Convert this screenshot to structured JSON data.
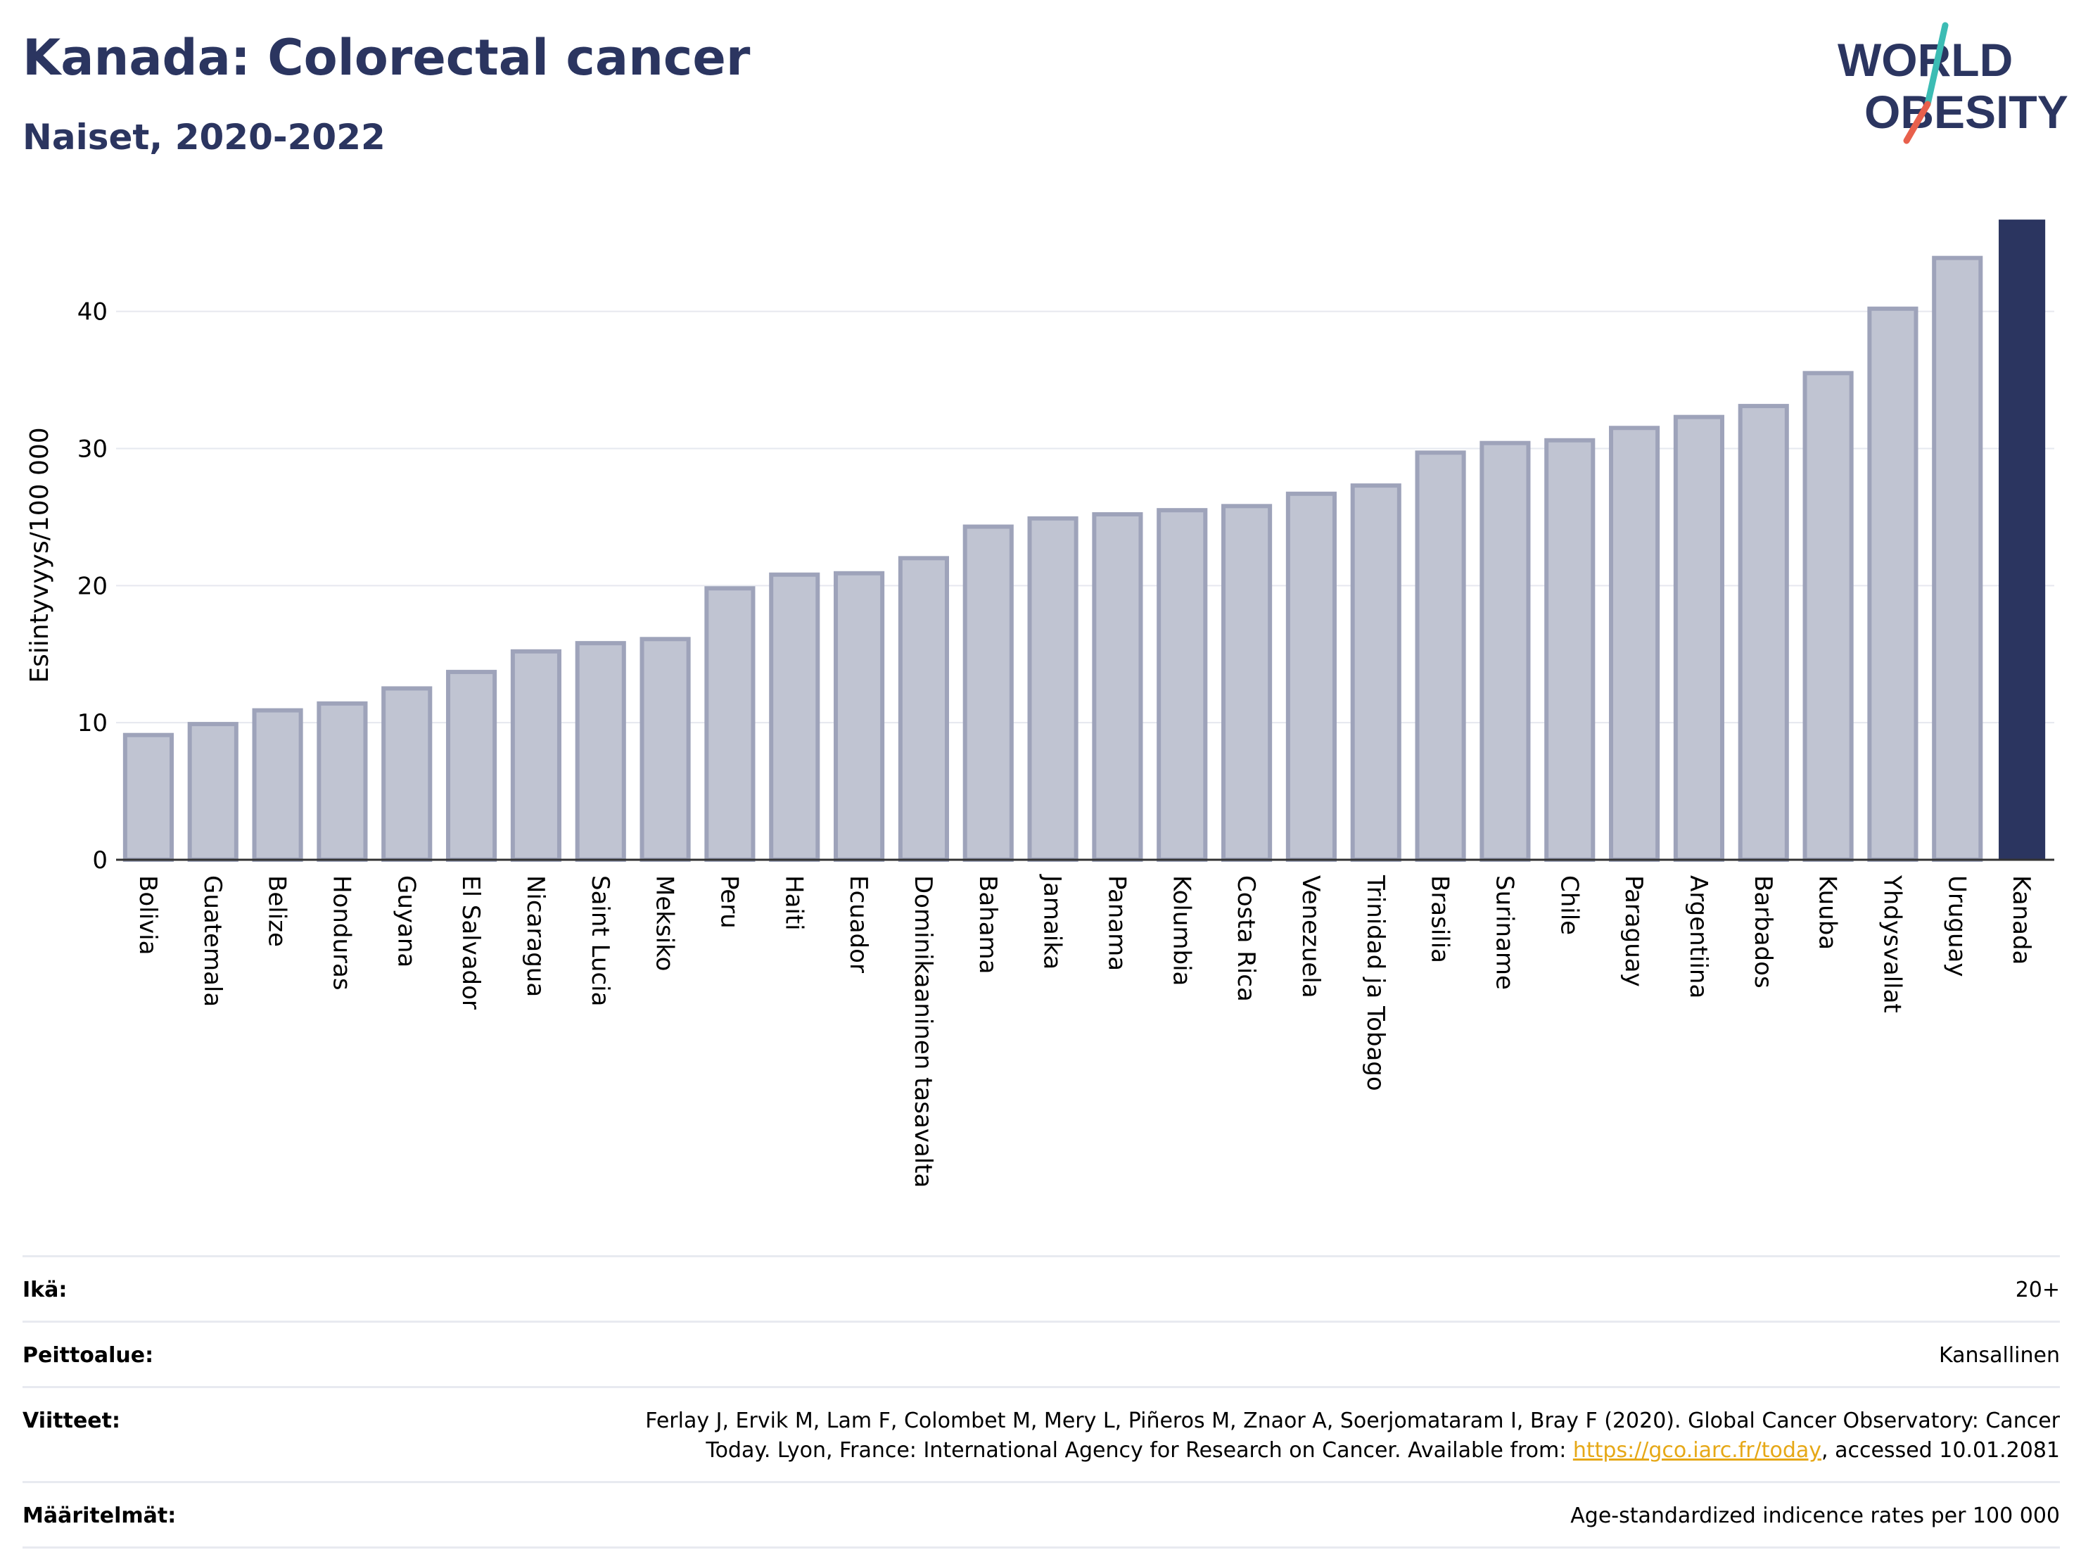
{
  "header": {
    "title": "Kanada: Colorectal cancer",
    "subtitle": "Naiset, 2020-2022"
  },
  "logo": {
    "line1": "WORLD",
    "line2": "OBESITY",
    "colors": {
      "text": "#2b3560",
      "slash_teal": "#3cbcb4",
      "slash_red": "#e8604c"
    }
  },
  "chart_data": {
    "type": "bar",
    "ylabel": "Esiintyvyys/100 000",
    "xlabel": "",
    "ylim": [
      0,
      46.5
    ],
    "yticks": [
      0,
      10,
      20,
      30,
      40
    ],
    "grid": true,
    "categories": [
      "Bolivia",
      "Guatemala",
      "Belize",
      "Honduras",
      "Guyana",
      "El Salvador",
      "Nicaragua",
      "Saint Lucia",
      "Meksiko",
      "Peru",
      "Haiti",
      "Ecuador",
      "Dominikaaninen tasavalta",
      "Bahama",
      "Jamaika",
      "Panama",
      "Kolumbia",
      "Costa Rica",
      "Venezuela",
      "Trinidad ja Tobago",
      "Brasilia",
      "Suriname",
      "Chile",
      "Paraguay",
      "Argentiina",
      "Barbados",
      "Kuuba",
      "Yhdysvallat",
      "Uruguay",
      "Kanada"
    ],
    "values": [
      9.1,
      9.9,
      10.9,
      11.4,
      12.5,
      13.7,
      15.2,
      15.8,
      16.1,
      19.8,
      20.8,
      20.9,
      22.0,
      24.3,
      24.9,
      25.2,
      25.5,
      25.8,
      26.7,
      27.3,
      29.7,
      30.4,
      30.6,
      31.5,
      32.3,
      33.1,
      35.5,
      40.2,
      43.9,
      46.7
    ],
    "highlight": "Kanada",
    "colors": {
      "bar": "#c0c4d2",
      "bar_edge": "#9ea3ba",
      "highlight": "#2b3560",
      "grid": "#e6e8ef"
    }
  },
  "meta": {
    "age_label": "Ikä:",
    "age_value": "20+",
    "coverage_label": "Peittoalue:",
    "coverage_value": "Kansallinen",
    "refs_label": "Viitteet:",
    "refs_line1": "Ferlay J, Ervik M, Lam F, Colombet M, Mery L, Piñeros M, Znaor A, Soerjomataram I, Bray F (2020). Global Cancer Observatory: Cancer",
    "refs_line2_pre": "Today. Lyon, France: International Agency for Research on Cancer. Available from: ",
    "refs_link": "https://gco.iarc.fr/today",
    "refs_line2_post": ", accessed 10.01.2081",
    "defs_label": "Määritelmät:",
    "defs_value": "Age-standardized indicence rates per 100 000"
  }
}
